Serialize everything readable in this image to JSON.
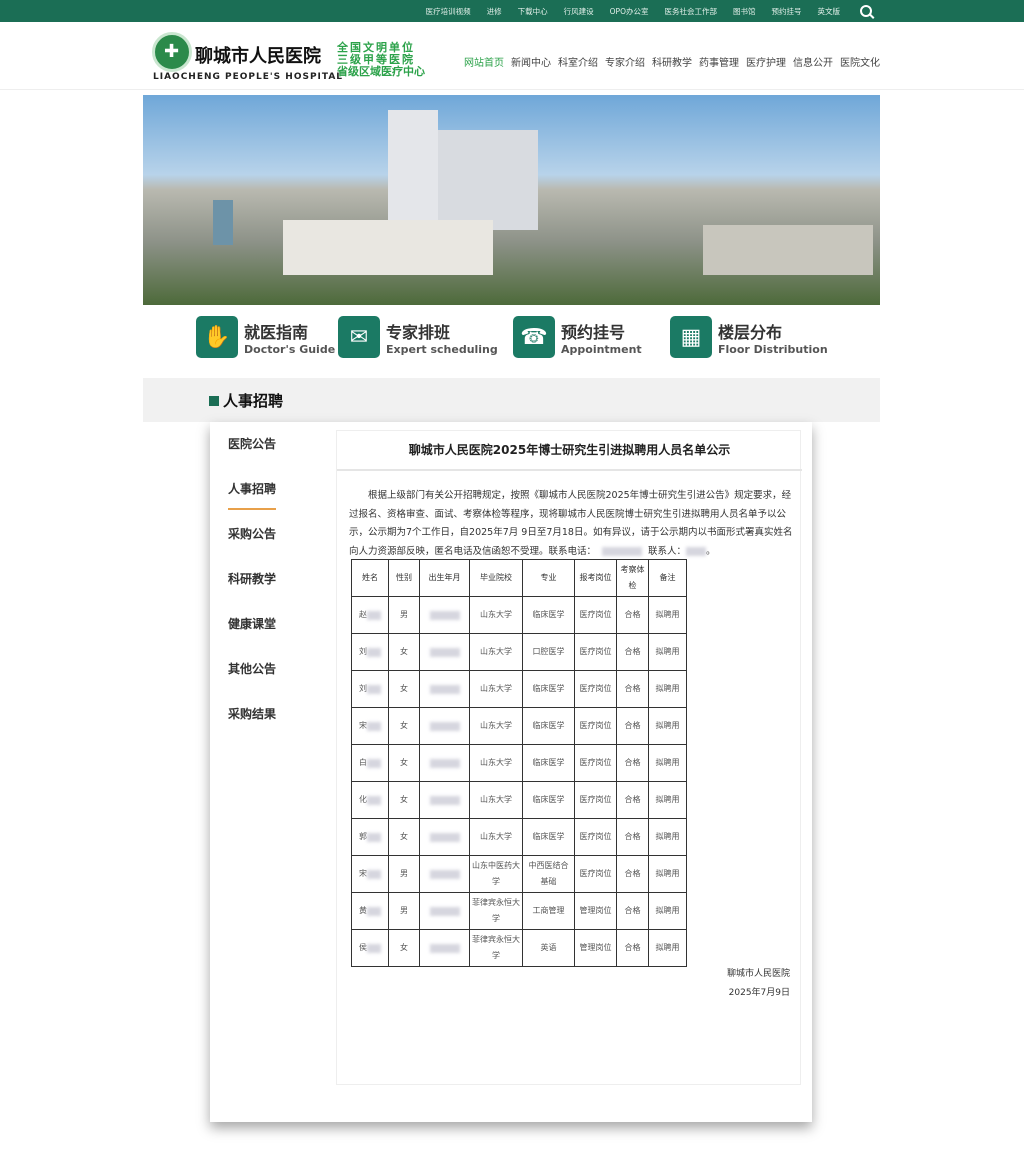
{
  "topbar": {
    "links": [
      "医疗培训视频",
      "进修",
      "下载中心",
      "行风建设",
      "OPO办公室",
      "医务社会工作部",
      "图书馆",
      "预约挂号",
      "英文版"
    ],
    "search_icon": "search-icon"
  },
  "header": {
    "name": "聊城市人民医院",
    "name_en": "LIAOCHENG PEOPLE'S HOSPITAL",
    "slogan": [
      "全国文明单位",
      "三级甲等医院",
      "省级区域医疗中心"
    ],
    "nav": [
      "网站首页",
      "新闻中心",
      "科室介绍",
      "专家介绍",
      "科研教学",
      "药事管理",
      "医疗护理",
      "信息公开",
      "医院文化"
    ]
  },
  "quick": [
    {
      "cn": "就医指南",
      "en": "Doctor's Guide",
      "icon": "hand-icon"
    },
    {
      "cn": "专家排班",
      "en": "Expert scheduling",
      "icon": "id-card-icon"
    },
    {
      "cn": "预约挂号",
      "en": "Appointment",
      "icon": "phone-icon"
    },
    {
      "cn": "楼层分布",
      "en": "Floor Distribution",
      "icon": "building-icon"
    }
  ],
  "section": "人事招聘",
  "sidebar": [
    "医院公告",
    "人事招聘",
    "采购公告",
    "科研教学",
    "健康课堂",
    "其他公告",
    "采购结果"
  ],
  "article": {
    "title": "聊城市人民医院2025年博士研究生引进拟聘用人员名单公示",
    "body": "根据上级部门有关公开招聘规定，按照《聊城市人民医院2025年博士研究生引进公告》规定要求，经过报名、资格审查、面试、考察体检等程序，现将聊城市人民医院博士研究生引进拟聘用人员名单予以公示，公示期为7个工作日，自2025年7月 9日至7月18日。如有异议，请于公示期内以书面形式署真实姓名向人力资源部反映，匿名电话及信函恕不受理。联系电话：",
    "contact_label": "联系人：",
    "headers": [
      "姓名",
      "性别",
      "出生年月",
      "毕业院校",
      "专业",
      "报考岗位",
      "考察体检",
      "备注"
    ],
    "rows": [
      [
        "赵",
        "男",
        "",
        "山东大学",
        "临床医学",
        "医疗岗位",
        "合格",
        "拟聘用"
      ],
      [
        "刘",
        "女",
        "",
        "山东大学",
        "口腔医学",
        "医疗岗位",
        "合格",
        "拟聘用"
      ],
      [
        "刘",
        "女",
        "",
        "山东大学",
        "临床医学",
        "医疗岗位",
        "合格",
        "拟聘用"
      ],
      [
        "宋",
        "女",
        "",
        "山东大学",
        "临床医学",
        "医疗岗位",
        "合格",
        "拟聘用"
      ],
      [
        "白",
        "女",
        "",
        "山东大学",
        "临床医学",
        "医疗岗位",
        "合格",
        "拟聘用"
      ],
      [
        "化",
        "女",
        "",
        "山东大学",
        "临床医学",
        "医疗岗位",
        "合格",
        "拟聘用"
      ],
      [
        "郭",
        "女",
        "",
        "山东大学",
        "临床医学",
        "医疗岗位",
        "合格",
        "拟聘用"
      ],
      [
        "宋",
        "男",
        "",
        "山东中医药大学",
        "中西医结合基础",
        "医疗岗位",
        "合格",
        "拟聘用"
      ],
      [
        "黄",
        "男",
        "",
        "菲律宾永恒大学",
        "工商管理",
        "管理岗位",
        "合格",
        "拟聘用"
      ],
      [
        "侯",
        "女",
        "",
        "菲律宾永恒大学",
        "英语",
        "管理岗位",
        "合格",
        "拟聘用"
      ]
    ],
    "signature": "聊城市人民医院",
    "date": "2025年7月9日"
  },
  "colors": {
    "brand": "#1b6e55",
    "accent": "#2ca24a",
    "tab_underline": "#e8a04a"
  }
}
